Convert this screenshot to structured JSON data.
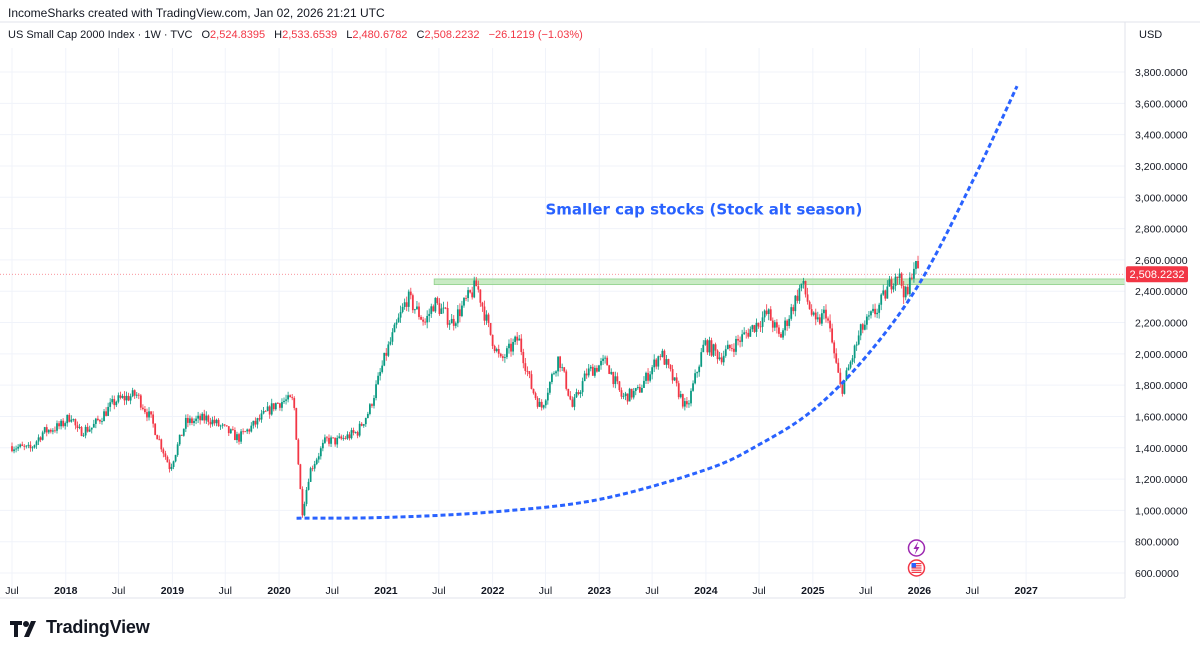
{
  "attribution": "IncomeSharks created with TradingView.com, Jan 02, 2026 21:21 UTC",
  "legend": {
    "symbol": "US Small Cap 2000 Index · 1W · TVC",
    "open_label": "O",
    "open": "2,524.8395",
    "high_label": "H",
    "high": "2,533.6539",
    "low_label": "L",
    "low": "2,480.6782",
    "close_label": "C",
    "close": "2,508.2232",
    "change": "−26.1219 (−1.03%)"
  },
  "currency": "USD",
  "brand": "TradingView",
  "colors": {
    "up": "#089981",
    "down": "#f23645",
    "annotation": "#2962ff",
    "zone": "#b7e4b0"
  },
  "chart_data": {
    "type": "candlestick",
    "interval": "1W",
    "ylim": [
      540,
      3900
    ],
    "y_ticks": [
      "600.0000",
      "800.0000",
      "1,000.0000",
      "1,200.0000",
      "1,400.0000",
      "1,600.0000",
      "1,800.0000",
      "2,000.0000",
      "2,200.0000",
      "2,400.0000",
      "2,600.0000",
      "2,800.0000",
      "3,000.0000",
      "3,200.0000",
      "3,400.0000",
      "3,600.0000",
      "3,800.0000"
    ],
    "x_ticks": [
      "Jul",
      "2018",
      "Jul",
      "2019",
      "Jul",
      "2020",
      "Jul",
      "2021",
      "Jul",
      "2022",
      "Jul",
      "2023",
      "Jul",
      "2024",
      "Jul",
      "2025",
      "Jul",
      "2026",
      "Jul",
      "2027"
    ],
    "x_range": [
      "2017-07",
      "2027-07"
    ],
    "price_anchors": [
      [
        "2017-07-01",
        1410
      ],
      [
        "2017-09-01",
        1390
      ],
      [
        "2017-10-15",
        1500
      ],
      [
        "2017-12-15",
        1540
      ],
      [
        "2018-01-20",
        1610
      ],
      [
        "2018-02-10",
        1500
      ],
      [
        "2018-04-01",
        1530
      ],
      [
        "2018-06-20",
        1700
      ],
      [
        "2018-08-31",
        1740
      ],
      [
        "2018-10-20",
        1580
      ],
      [
        "2018-12-24",
        1270
      ],
      [
        "2019-02-15",
        1560
      ],
      [
        "2019-05-01",
        1590
      ],
      [
        "2019-08-15",
        1460
      ],
      [
        "2019-10-15",
        1560
      ],
      [
        "2019-12-20",
        1680
      ],
      [
        "2020-01-20",
        1700
      ],
      [
        "2020-02-20",
        1700
      ],
      [
        "2020-03-20",
        980
      ],
      [
        "2020-04-15",
        1250
      ],
      [
        "2020-06-10",
        1450
      ],
      [
        "2020-07-15",
        1440
      ],
      [
        "2020-09-25",
        1500
      ],
      [
        "2020-11-05",
        1640
      ],
      [
        "2021-01-01",
        2000
      ],
      [
        "2021-03-15",
        2360
      ],
      [
        "2021-05-15",
        2200
      ],
      [
        "2021-06-15",
        2330
      ],
      [
        "2021-08-15",
        2200
      ],
      [
        "2021-11-08",
        2440
      ],
      [
        "2021-12-20",
        2150
      ],
      [
        "2022-01-28",
        1950
      ],
      [
        "2022-03-30",
        2100
      ],
      [
        "2022-05-15",
        1780
      ],
      [
        "2022-06-16",
        1650
      ],
      [
        "2022-08-15",
        1980
      ],
      [
        "2022-10-01",
        1660
      ],
      [
        "2022-11-20",
        1880
      ],
      [
        "2023-01-25",
        1950
      ],
      [
        "2023-03-20",
        1720
      ],
      [
        "2023-05-15",
        1760
      ],
      [
        "2023-07-31",
        2010
      ],
      [
        "2023-10-27",
        1640
      ],
      [
        "2023-12-27",
        2070
      ],
      [
        "2024-02-20",
        1980
      ],
      [
        "2024-05-01",
        2100
      ],
      [
        "2024-07-31",
        2260
      ],
      [
        "2024-09-10",
        2100
      ],
      [
        "2024-11-25",
        2450
      ],
      [
        "2025-01-10",
        2180
      ],
      [
        "2025-02-15",
        2270
      ],
      [
        "2025-04-08",
        1760
      ],
      [
        "2025-06-15",
        2150
      ],
      [
        "2025-08-15",
        2300
      ],
      [
        "2025-10-15",
        2530
      ],
      [
        "2025-11-20",
        2350
      ],
      [
        "2025-12-10",
        2580
      ],
      [
        "2026-01-02",
        2508
      ]
    ],
    "horizontal_zone": {
      "from": "2021-06",
      "y": [
        2442,
        2478
      ]
    },
    "last_price_line": 2508.2232,
    "last_price_label": "2,508.2232",
    "projection_curve": [
      [
        "2020-03",
        950
      ],
      [
        "2021-01",
        955
      ],
      [
        "2022-01",
        990
      ],
      [
        "2023-01",
        1070
      ],
      [
        "2024-01",
        1260
      ],
      [
        "2024-07",
        1420
      ],
      [
        "2025-01",
        1640
      ],
      [
        "2025-07",
        1980
      ],
      [
        "2026-01",
        2450
      ],
      [
        "2026-07",
        3100
      ],
      [
        "2026-12",
        3710
      ]
    ],
    "annotation": "Smaller cap stocks (Stock alt season)"
  }
}
